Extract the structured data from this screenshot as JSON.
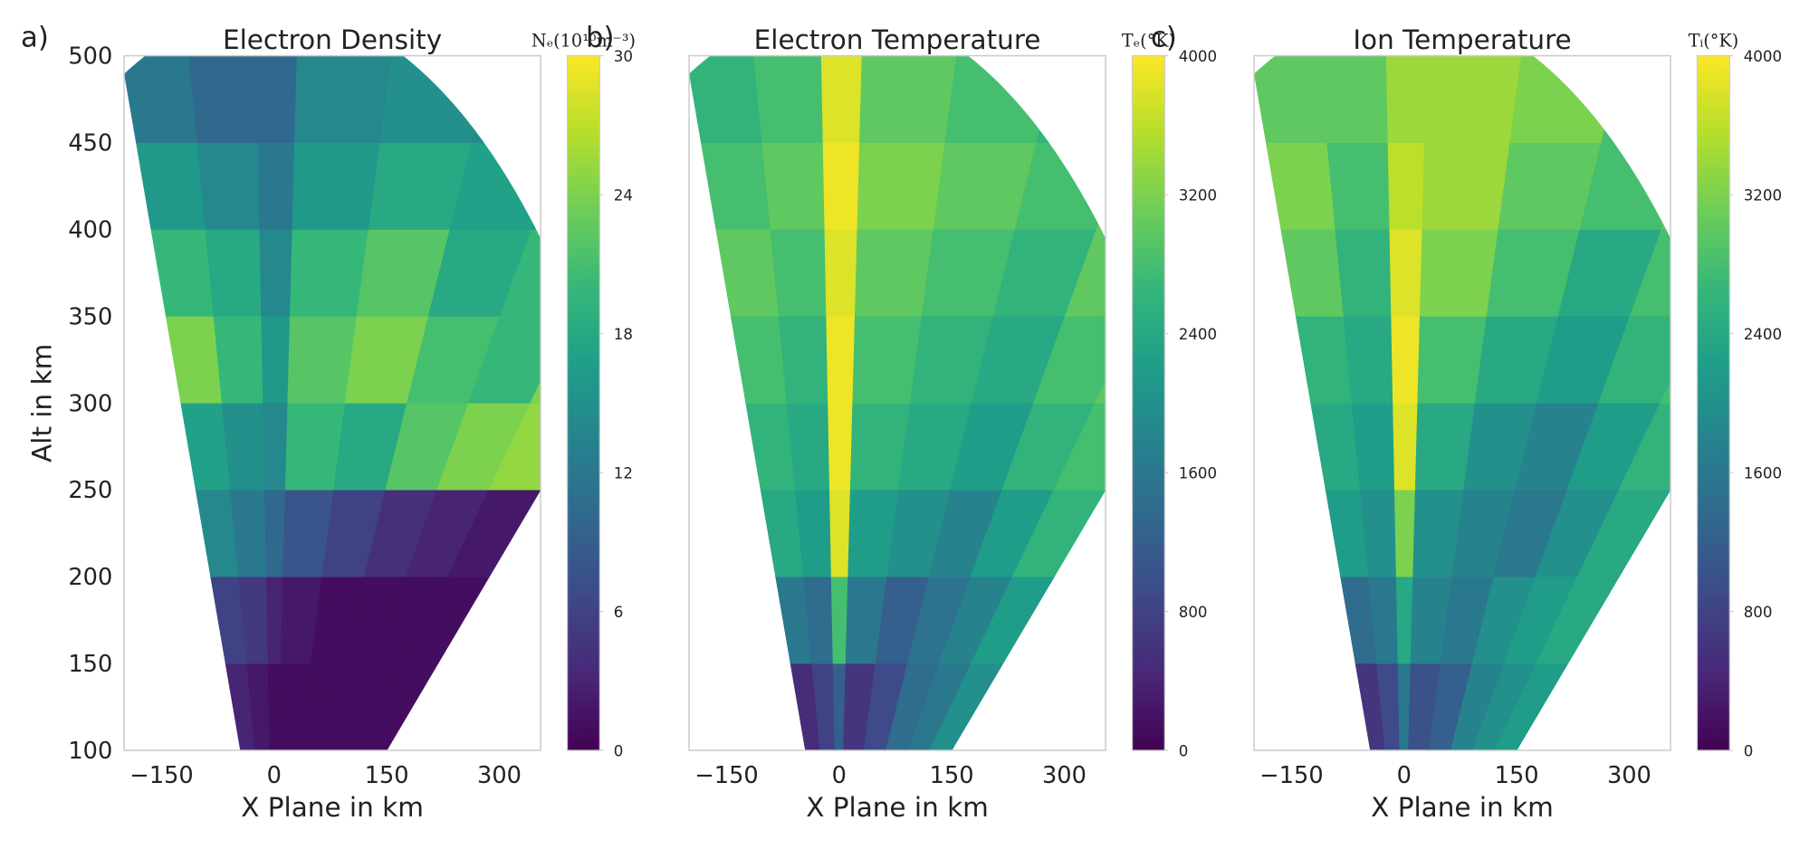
{
  "chart_data": [
    {
      "type": "heatmap",
      "panel_label": "a)",
      "title": "Electron Density",
      "xlabel": "X Plane in km",
      "ylabel": "Alt in km",
      "xlim": [
        -200,
        355
      ],
      "xticks": [
        {
          "value": -150,
          "label": "−150"
        },
        0,
        150,
        300
      ],
      "ylim": [
        100,
        500
      ],
      "yticks": [
        100,
        150,
        200,
        250,
        300,
        350,
        400,
        450,
        500
      ],
      "alt_edges": [
        100,
        150,
        200,
        250,
        300,
        350,
        400,
        450,
        500
      ],
      "colorbar": {
        "label": "Nₑ(10¹⁰m⁻³)",
        "lim": [
          0,
          30
        ],
        "ticks": [
          0,
          6,
          12,
          18,
          24,
          30
        ],
        "colormap": "viridis"
      },
      "values": [
        [
          3,
          2,
          1,
          1,
          1,
          1,
          1,
          1
        ],
        [
          6,
          5,
          3,
          2,
          1,
          1,
          1,
          1
        ],
        [
          14,
          12,
          10,
          8,
          6,
          4,
          3,
          2
        ],
        [
          17,
          15,
          14,
          20,
          18,
          22,
          24,
          25
        ],
        [
          24,
          20,
          16,
          22,
          24,
          21,
          20,
          24
        ],
        [
          20,
          18,
          14,
          20,
          22,
          18,
          20,
          18
        ],
        [
          16,
          14,
          12,
          16,
          18,
          17,
          16,
          15
        ],
        [
          12,
          10,
          10,
          14,
          15,
          14,
          13,
          12
        ]
      ]
    },
    {
      "type": "heatmap",
      "panel_label": "b)",
      "title": "Electron Temperature",
      "xlabel": "X Plane in km",
      "xlim": [
        -200,
        355
      ],
      "xticks": [
        {
          "value": -150,
          "label": "−150"
        },
        0,
        150,
        300
      ],
      "ylim": [
        100,
        500
      ],
      "alt_edges": [
        100,
        150,
        200,
        250,
        300,
        350,
        400,
        450,
        500
      ],
      "colorbar": {
        "label": "Tₑ(°K)",
        "lim": [
          0,
          4000
        ],
        "ticks": [
          0,
          800,
          1600,
          2400,
          3200,
          4000
        ],
        "colormap": "viridis"
      },
      "values": [
        [
          500,
          800,
          1200,
          600,
          900,
          1400,
          1600,
          2000
        ],
        [
          1600,
          1400,
          2800,
          1600,
          1200,
          1500,
          1800,
          2200
        ],
        [
          2400,
          2200,
          3800,
          2200,
          2000,
          1800,
          2200,
          2600
        ],
        [
          2600,
          2400,
          3900,
          2600,
          2400,
          2200,
          2600,
          2800
        ],
        [
          2800,
          2600,
          3900,
          2800,
          2600,
          2400,
          2800,
          3000
        ],
        [
          3000,
          2800,
          3800,
          3000,
          2800,
          2600,
          3000,
          3200
        ],
        [
          2800,
          3000,
          3900,
          3200,
          3000,
          2800,
          3000,
          3000
        ],
        [
          2600,
          2800,
          3800,
          3000,
          2800,
          2600,
          2800,
          2800
        ]
      ]
    },
    {
      "type": "heatmap",
      "panel_label": "c)",
      "title": "Ion Temperature",
      "xlabel": "X Plane in km",
      "xlim": [
        -200,
        355
      ],
      "xticks": [
        {
          "value": -150,
          "label": "−150"
        },
        0,
        150,
        300
      ],
      "ylim": [
        100,
        500
      ],
      "alt_edges": [
        100,
        150,
        200,
        250,
        300,
        350,
        400,
        450,
        500
      ],
      "colorbar": {
        "label": "Tᵢ(°K)",
        "lim": [
          0,
          4000
        ],
        "ticks": [
          0,
          800,
          1600,
          2400,
          3200,
          4000
        ],
        "colormap": "viridis"
      },
      "values": [
        [
          600,
          900,
          1600,
          1000,
          1200,
          1800,
          2000,
          2200
        ],
        [
          1400,
          1600,
          2400,
          1800,
          1600,
          2000,
          2200,
          2400
        ],
        [
          2200,
          2000,
          3200,
          2000,
          1800,
          1600,
          2000,
          2400
        ],
        [
          2400,
          2200,
          3800,
          2400,
          2000,
          1800,
          2200,
          2600
        ],
        [
          2600,
          2400,
          3900,
          2800,
          2400,
          2200,
          2600,
          2800
        ],
        [
          3000,
          2600,
          3800,
          3200,
          2800,
          2400,
          2800,
          3000
        ],
        [
          3200,
          2800,
          3600,
          3400,
          3000,
          2800,
          3000,
          3000
        ],
        [
          3000,
          3000,
          3400,
          3400,
          3200,
          2800,
          3000,
          3000
        ]
      ]
    }
  ]
}
